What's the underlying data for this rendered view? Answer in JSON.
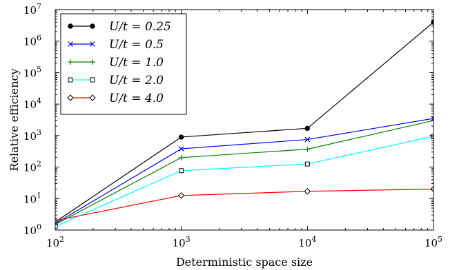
{
  "chart_data": {
    "type": "line",
    "xscale": "log",
    "yscale": "log",
    "xlim": [
      100,
      100000
    ],
    "ylim": [
      1,
      10000000
    ],
    "xlabel": "Deterministic space size",
    "ylabel": "Relative efficiency",
    "x": [
      100,
      1000,
      10000,
      100000
    ],
    "x_ticks": [
      {
        "base": "10",
        "exp": "2"
      },
      {
        "base": "10",
        "exp": "3"
      },
      {
        "base": "10",
        "exp": "4"
      },
      {
        "base": "10",
        "exp": "5"
      }
    ],
    "y_ticks": [
      {
        "base": "10",
        "exp": "0"
      },
      {
        "base": "10",
        "exp": "1"
      },
      {
        "base": "10",
        "exp": "2"
      },
      {
        "base": "10",
        "exp": "3"
      },
      {
        "base": "10",
        "exp": "4"
      },
      {
        "base": "10",
        "exp": "5"
      },
      {
        "base": "10",
        "exp": "6"
      },
      {
        "base": "10",
        "exp": "7"
      }
    ],
    "legend_position": "top-left",
    "grid": false,
    "series": [
      {
        "name": "U/t = 0.25",
        "color": "#000000",
        "marker": "dot",
        "values": [
          1.8,
          900,
          1700,
          4000000
        ]
      },
      {
        "name": "U/t = 0.5",
        "color": "#0000ff",
        "marker": "x",
        "values": [
          1.6,
          380,
          750,
          3500
        ]
      },
      {
        "name": "U/t = 1.0",
        "color": "#008000",
        "marker": "plus",
        "values": [
          1.5,
          200,
          370,
          3000
        ]
      },
      {
        "name": "U/t = 2.0",
        "color": "#00ffff",
        "marker": "square",
        "values": [
          1.3,
          77,
          125,
          950
        ]
      },
      {
        "name": "U/t = 4.0",
        "color": "#ff0000",
        "marker": "diamond",
        "values": [
          2.0,
          12.5,
          17,
          20
        ]
      }
    ]
  }
}
